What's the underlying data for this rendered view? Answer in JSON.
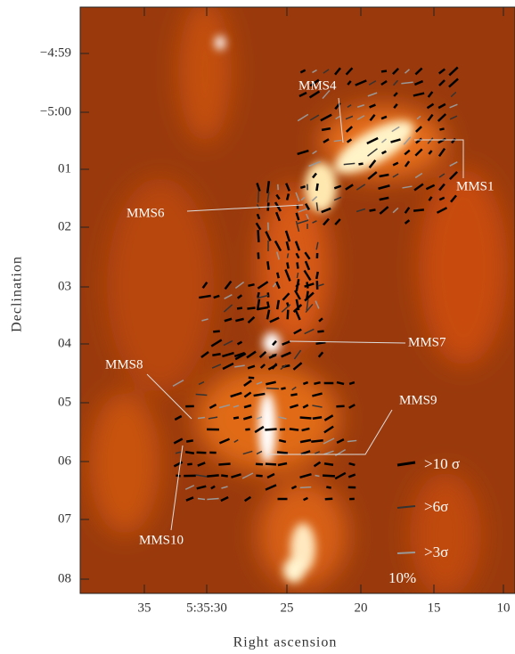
{
  "axes": {
    "x_label": "Right ascension",
    "y_label": "Declination",
    "x_ticks": [
      "35",
      "5:35:30",
      "25",
      "20",
      "15",
      "10"
    ],
    "y_ticks": [
      "−4:59",
      "−5:00",
      "01",
      "02",
      "03",
      "04",
      "05",
      "06",
      "07",
      "08"
    ]
  },
  "sources": [
    {
      "label": "MMS4"
    },
    {
      "label": "MMS1"
    },
    {
      "label": "MMS6"
    },
    {
      "label": "MMS7"
    },
    {
      "label": "MMS8"
    },
    {
      "label": "MMS9"
    },
    {
      "label": "MMS10"
    }
  ],
  "legend": {
    "items": [
      ">10 σ",
      ">6σ",
      ">3σ"
    ],
    "scale": "10%"
  }
}
